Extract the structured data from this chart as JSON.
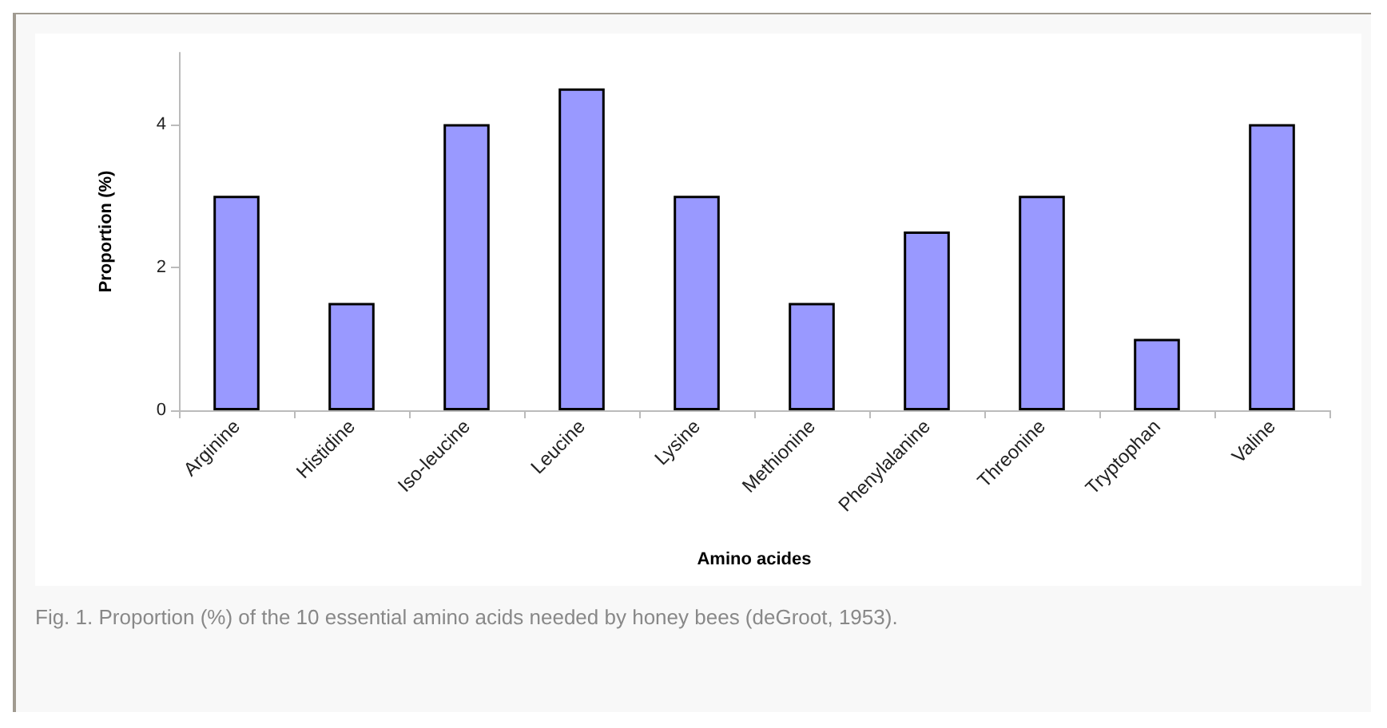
{
  "chart_data": {
    "type": "bar",
    "xlabel": "Amino acides",
    "ylabel": "Proportion (%)",
    "categories": [
      "Arginine",
      "Histidine",
      "Iso-leucine",
      "Leucine",
      "Lysine",
      "Methionine",
      "Phenylalanine",
      "Threonine",
      "Tryptophan",
      "Valine"
    ],
    "values": [
      3,
      1.5,
      4,
      4.5,
      3,
      1.5,
      2.5,
      3,
      1,
      4
    ],
    "color": "#9999ff",
    "ylim": [
      0,
      5
    ],
    "yticks": [
      0,
      2,
      4
    ],
    "grid": false,
    "annotations": [
      "Fig. 1. Proportion (%) of the 10 essential amino acids needed by honey bees (deGroot, 1953)."
    ]
  }
}
